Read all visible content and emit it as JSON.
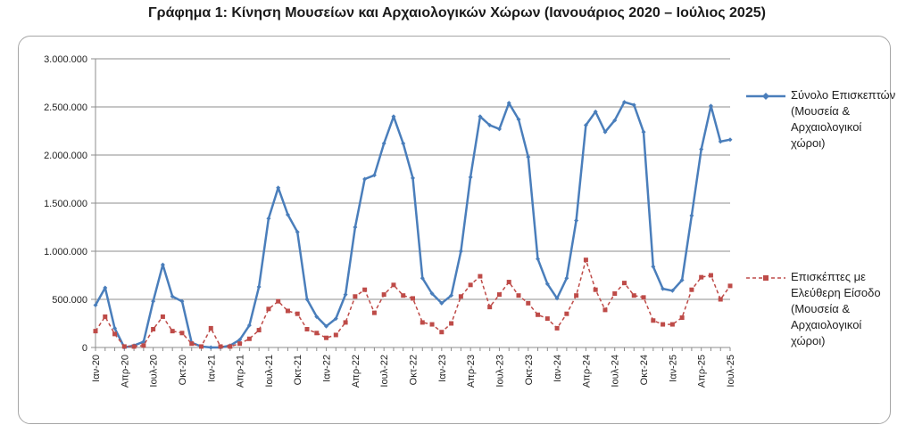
{
  "chart_data": {
    "type": "line",
    "title": "Γράφημα 1: Κίνηση Μουσείων και Αρχαιολογικών Χώρων (Ιανουάριος 2020 – Ιούλιος 2025)",
    "ylim": [
      0,
      3000000
    ],
    "yticks": [
      "0",
      "500.000",
      "1.000.000",
      "1.500.000",
      "2.000.000",
      "2.500.000",
      "3.000.000"
    ],
    "x_tick_labels": [
      "Ιαν-20",
      "Απρ-20",
      "Ιουλ-20",
      "Οκτ-20",
      "Ιαν-21",
      "Απρ-21",
      "Ιουλ-21",
      "Οκτ-21",
      "Ιαν-22",
      "Απρ-22",
      "Ιουλ-22",
      "Οκτ-22",
      "Ιαν-23",
      "Απρ-23",
      "Ιουλ-23",
      "Οκτ-23",
      "Ιαν-24",
      "Απρ-24",
      "Ιουλ-24",
      "Οκτ-24",
      "Ιαν-25",
      "Απρ-25",
      "Ιουλ-25"
    ],
    "grid": true,
    "legend_position": "right",
    "series": [
      {
        "name": "Σύνολο Επισκεπτών (Μουσεία & Αρχαιολογικοί χώροι)",
        "color": "#4a7ebb",
        "style": "solid",
        "marker": "diamond",
        "values": [
          440000,
          620000,
          200000,
          0,
          20000,
          60000,
          480000,
          860000,
          530000,
          480000,
          50000,
          10000,
          0,
          0,
          20000,
          80000,
          230000,
          630000,
          1340000,
          1660000,
          1380000,
          1200000,
          500000,
          320000,
          220000,
          300000,
          550000,
          1250000,
          1750000,
          1790000,
          2120000,
          2400000,
          2120000,
          1760000,
          720000,
          560000,
          460000,
          540000,
          1000000,
          1770000,
          2400000,
          2310000,
          2270000,
          2540000,
          2370000,
          1980000,
          920000,
          660000,
          510000,
          720000,
          1320000,
          2310000,
          2450000,
          2240000,
          2360000,
          2550000,
          2520000,
          2240000,
          840000,
          610000,
          590000,
          700000,
          1370000,
          2060000,
          2510000,
          2140000,
          2160000
        ]
      },
      {
        "name": "Επισκέπτες με Ελεύθερη Είσοδο (Μουσεία & Αρχαιολογικοί χώροι)",
        "color": "#be4b48",
        "style": "dashed",
        "marker": "square",
        "values": [
          170000,
          320000,
          140000,
          10000,
          10000,
          20000,
          190000,
          320000,
          170000,
          150000,
          40000,
          10000,
          200000,
          10000,
          10000,
          40000,
          90000,
          180000,
          400000,
          480000,
          380000,
          350000,
          190000,
          150000,
          100000,
          130000,
          260000,
          530000,
          600000,
          360000,
          550000,
          650000,
          540000,
          510000,
          260000,
          240000,
          160000,
          250000,
          530000,
          650000,
          740000,
          420000,
          550000,
          680000,
          540000,
          460000,
          340000,
          300000,
          200000,
          350000,
          540000,
          910000,
          600000,
          390000,
          560000,
          670000,
          540000,
          520000,
          280000,
          240000,
          240000,
          310000,
          600000,
          730000,
          750000,
          500000,
          640000
        ]
      }
    ]
  }
}
